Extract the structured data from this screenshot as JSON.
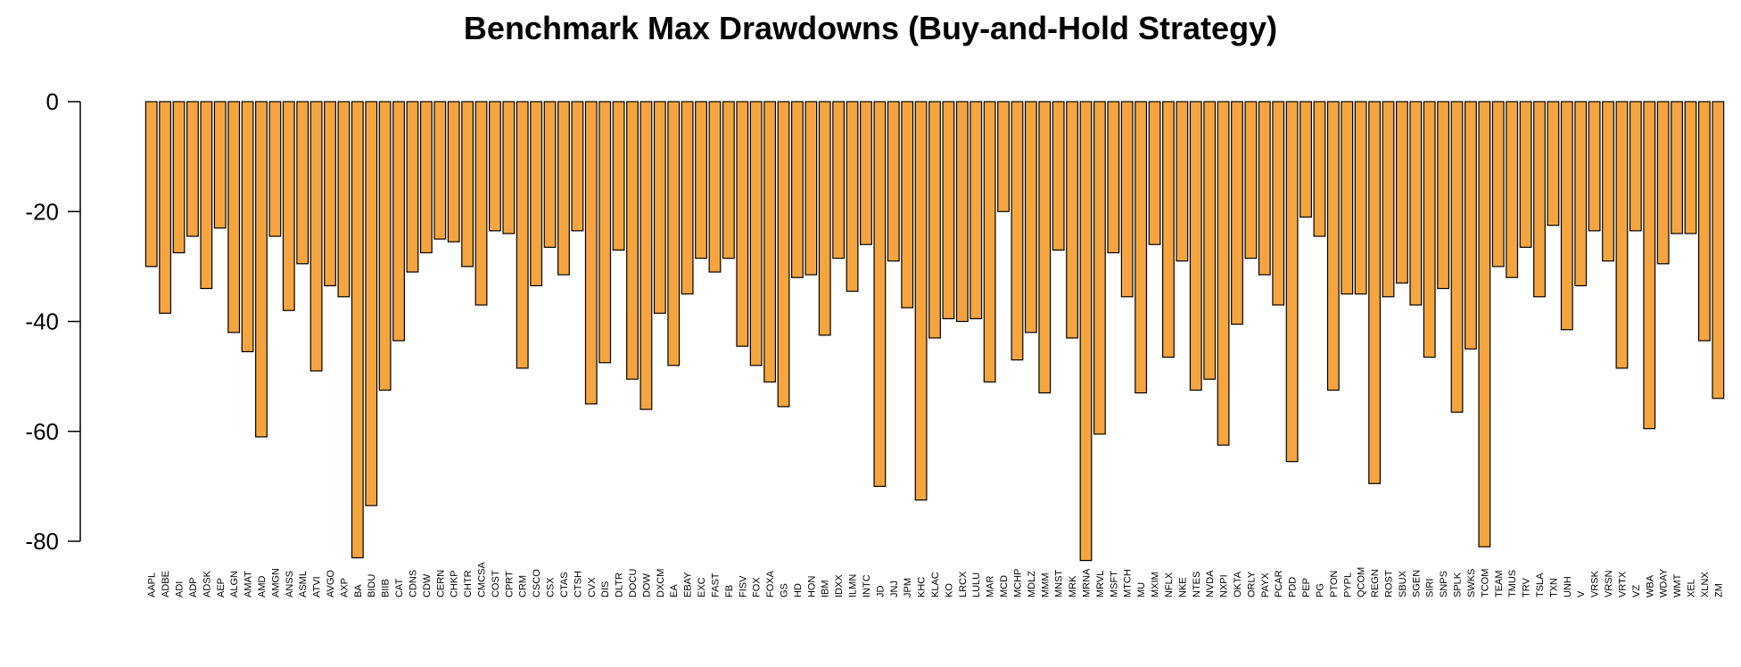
{
  "chart_data": {
    "type": "bar",
    "title": "Benchmark Max Drawdowns (Buy-and-Hold Strategy)",
    "xlabel": "",
    "ylabel": "",
    "ylim": [
      -85,
      0
    ],
    "yticks": [
      0,
      -20,
      -40,
      -60,
      -80
    ],
    "grid": false,
    "bar_color": "#F5A540",
    "categories": [
      "AAPL",
      "ADBE",
      "ADI",
      "ADP",
      "ADSK",
      "AEP",
      "ALGN",
      "AMAT",
      "AMD",
      "AMGN",
      "ANSS",
      "ASML",
      "ATVI",
      "AVGO",
      "AXP",
      "BA",
      "BIDU",
      "BIIB",
      "CAT",
      "CDNS",
      "CDW",
      "CERN",
      "CHKP",
      "CHTR",
      "CMCSA",
      "COST",
      "CPRT",
      "CRM",
      "CSCO",
      "CSX",
      "CTAS",
      "CTSH",
      "CVX",
      "DIS",
      "DLTR",
      "DOCU",
      "DOW",
      "DXCM",
      "EA",
      "EBAY",
      "EXC",
      "FAST",
      "FB",
      "FISV",
      "FOX",
      "FOXA",
      "GS",
      "HD",
      "HON",
      "IBM",
      "IDXX",
      "ILMN",
      "INTC",
      "JD",
      "JNJ",
      "JPM",
      "KHC",
      "KLAC",
      "KO",
      "LRCX",
      "LULU",
      "MAR",
      "MCD",
      "MCHP",
      "MDLZ",
      "MMM",
      "MNST",
      "MRK",
      "MRNA",
      "MRVL",
      "MSFT",
      "MTCH",
      "MU",
      "MXIM",
      "NFLX",
      "NKE",
      "NTES",
      "NVDA",
      "NXPI",
      "OKTA",
      "ORLY",
      "PAYX",
      "PCAR",
      "PDD",
      "PEP",
      "PG",
      "PTON",
      "PYPL",
      "QCOM",
      "REGN",
      "ROST",
      "SBUX",
      "SGEN",
      "SIRI",
      "SNPS",
      "SPLK",
      "SWKS",
      "TCOM",
      "TEAM",
      "TMUS",
      "TRV",
      "TSLA",
      "TXN",
      "UNH",
      "V",
      "VRSK",
      "VRSN",
      "VRTX",
      "VZ",
      "WBA",
      "WDAY",
      "WMT",
      "XEL",
      "XLNX",
      "ZM"
    ],
    "values": [
      -30,
      -38.5,
      -27.5,
      -24.5,
      -34,
      -23,
      -42,
      -45.5,
      -61,
      -24.5,
      -38,
      -29.5,
      -49,
      -33.5,
      -35.5,
      -83,
      -73.5,
      -52.5,
      -43.5,
      -31,
      -27.5,
      -25,
      -25.5,
      -30,
      -37,
      -23.5,
      -24,
      -48.5,
      -33.5,
      -26.5,
      -31.5,
      -23.5,
      -55,
      -47.5,
      -27,
      -50.5,
      -56,
      -38.5,
      -48,
      -35,
      -28.5,
      -31,
      -28.5,
      -44.5,
      -48,
      -51,
      -55.5,
      -32,
      -31.5,
      -42.5,
      -28.5,
      -34.5,
      -26,
      -70,
      -29,
      -37.5,
      -72.5,
      -43,
      -39.5,
      -40,
      -39.5,
      -51,
      -20,
      -47,
      -42,
      -53,
      -27,
      -43,
      -83.5,
      -60.5,
      -27.5,
      -35.5,
      -53,
      -26,
      -46.5,
      -29,
      -52.5,
      -50.5,
      -62.5,
      -40.5,
      -28.5,
      -31.5,
      -37,
      -65.5,
      -21,
      -24.5,
      -52.5,
      -35,
      -35,
      -69.5,
      -35.5,
      -33,
      -37,
      -46.5,
      -34,
      -56.5,
      -45,
      -81,
      -30,
      -32,
      -26.5,
      -35.5,
      -22.5,
      -41.5,
      -33.5,
      -23.5,
      -29,
      -48.5,
      -23.5,
      -59.5,
      -29.5,
      -24,
      -24,
      -43.5,
      -54
    ]
  }
}
